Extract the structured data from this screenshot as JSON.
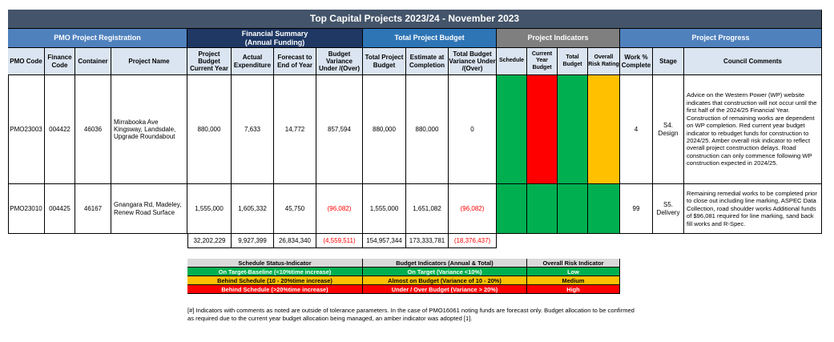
{
  "title": "Top Capital Projects 2023/24 - November 2023",
  "groups": {
    "pmo": "PMO Project Registration",
    "financial": "Financial Summary\n(Annual Funding)",
    "total": "Total Project Budget",
    "indicators": "Project Indicators",
    "progress": "Project Progress"
  },
  "columns": {
    "pmo_code": "PMO Code",
    "finance_code": "Finance Code",
    "container": "Container",
    "project_name": "Project Name",
    "budget_current_year": "Project Budget Current Year",
    "actual_expenditure": "Actual Expenditure",
    "forecast": "Forecast to End of Year",
    "budget_variance": "Budget Variance Under /(Over)",
    "total_project_budget": "Total Project Budget",
    "estimate_completion": "Estimate at Completion",
    "total_budget_variance": "Total Budget Variance Under /(Over)",
    "schedule": "Schedule",
    "current_year_budget": "Current Year Budget",
    "total_budget": "Total Budget",
    "overall_risk": "Overall Risk Rating",
    "work_complete": "Work % Complete",
    "stage": "Stage",
    "council_comments": "Council Comments"
  },
  "rows": [
    {
      "pmo_code": "PMO23003",
      "finance_code": "004422",
      "container": "46036",
      "project_name": "Mirrabooka Ave Kingsway, Landsdale, Upgrade Roundabout",
      "budget_current_year": "880,000",
      "actual_expenditure": "7,633",
      "forecast": "14,772",
      "budget_variance": "857,594",
      "total_project_budget": "880,000",
      "estimate_completion": "880,000",
      "total_budget_variance": "0",
      "indicator_colors": [
        "#00b050",
        "#ff0000",
        "#00b050",
        "#ffc000"
      ],
      "work_complete": "4",
      "stage": "S4. Design",
      "comment": "Advice on the Western Power (WP) website indicates that construction will not occur until the first half of the 2024/25 Financial Year. Construction of remaining works are dependent on WP completion. Red current year budget indicator to rebudget funds for construction to 2024/25. Amber overall risk indicator to reflect overall project construction delays. Road construction can only commence following WP construction expected in 2024/25."
    },
    {
      "pmo_code": "PMO23010",
      "finance_code": "004425",
      "container": "46167",
      "project_name": "Gnangara Rd, Madeley, Renew Road Surface",
      "budget_current_year": "1,555,000",
      "actual_expenditure": "1,605,332",
      "forecast": "45,750",
      "budget_variance": "(96,082)",
      "total_project_budget": "1,555,000",
      "estimate_completion": "1,651,082",
      "total_budget_variance": "(96,082)",
      "indicator_colors": [
        "#00b050",
        "#00b050",
        "#00b050",
        "#00b050"
      ],
      "work_complete": "99",
      "stage": "S5. Delivery",
      "comment": "Remaining remedial works to be completed prior to close out including line marking, ASPEC Data Collection, road shoulder works Additional funds of $96,081 required for line marking, sand back fill works and R-Spec."
    }
  ],
  "totals": {
    "budget_current_year": "32,202,229",
    "actual_expenditure": "9,927,399",
    "forecast": "26,834,340",
    "budget_variance": "(4,559,511)",
    "total_project_budget": "154,957,344",
    "estimate_completion": "173,333,781",
    "total_budget_variance": "(18,376,437)"
  },
  "legend": {
    "headers": [
      "Schedule Status-Indicator",
      "Budget Indicators (Annual & Total)",
      "Overall Risk Indicator"
    ],
    "rows": [
      {
        "color": "#00b050",
        "schedule": "On Target-Baseline (<10%time increase)",
        "budget": "On Target (Variance <10%)",
        "risk": "Low"
      },
      {
        "color": "#ffc000",
        "schedule": "Behind Schedule (10 - 20%time increase)",
        "budget": "Almost on Budget (Variance of 10 - 20%)",
        "risk": "Medium"
      },
      {
        "color": "#ff0000",
        "schedule": "Behind Schedule (>20%time increase)",
        "budget": "Under / Over Budget (Variance > 20%)",
        "risk": "High"
      }
    ]
  },
  "footnote": "[#] Indicators with comments as noted are outside of tolerance parameters. In the case of PMO16061 noting funds are forecast only. Budget allocation to be confirmed as required due to the current year budget allocation being managed, an amber indicator was adopted [1]."
}
